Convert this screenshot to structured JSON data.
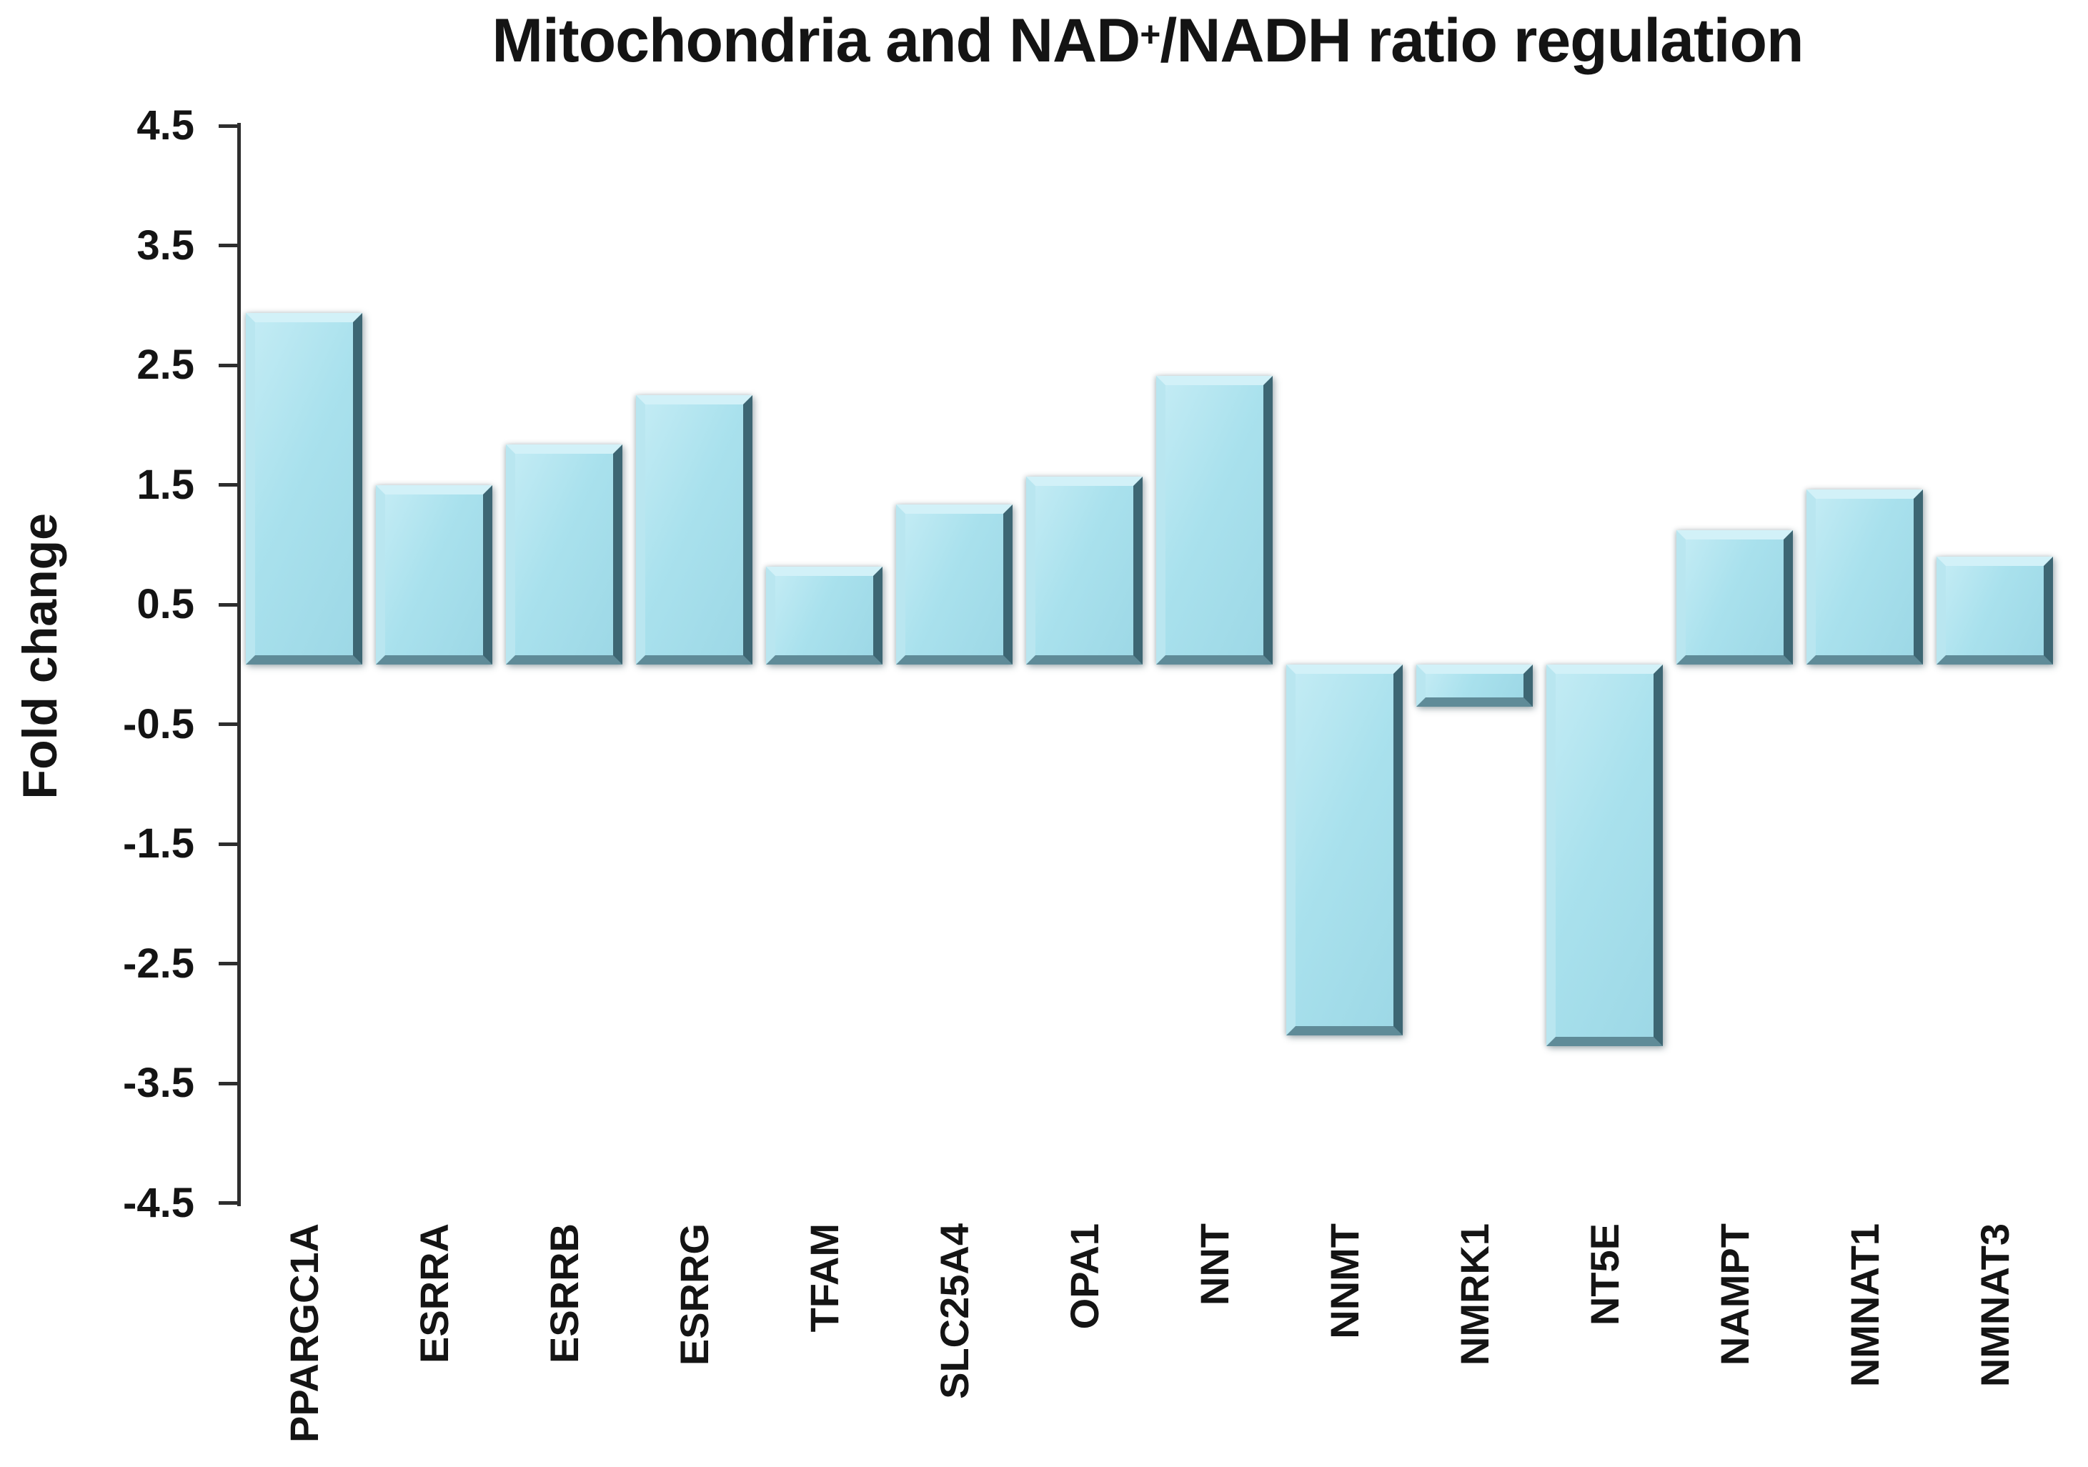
{
  "title": {
    "prefix": "Mitochondria and NAD",
    "superscript": "+",
    "suffix": "/NADH ratio regulation"
  },
  "chart_data": {
    "type": "bar",
    "title": "Mitochondria and NAD+/NADH ratio regulation",
    "categories": [
      "PPARGC1A",
      "ESRRA",
      "ESRRB",
      "ESRRG",
      "TFAM",
      "SLC25A4",
      "OPA1",
      "NNT",
      "NNMT",
      "NMRK1",
      "NT5E",
      "NAMPT",
      "NMNAT1",
      "NMNAT3"
    ],
    "values": [
      2.94,
      1.5,
      1.84,
      2.25,
      0.82,
      1.34,
      1.57,
      2.41,
      -3.1,
      -0.35,
      -3.19,
      1.12,
      1.46,
      0.9
    ],
    "xlabel": "",
    "ylabel": "Fold change",
    "ylim": [
      -4.5,
      4.5
    ],
    "yticks": [
      4.5,
      3.5,
      2.5,
      1.5,
      0.5,
      -0.5,
      -1.5,
      -2.5,
      -3.5,
      -4.5
    ],
    "grid": false,
    "legend": false,
    "bar_color": "#ace2ee",
    "bar_edge_dark": "#3d6673",
    "bar_edge_light": "#d2f1f8",
    "axis_color": "#2e2e2e",
    "text_color": "#141414",
    "background": "#ffffff"
  }
}
